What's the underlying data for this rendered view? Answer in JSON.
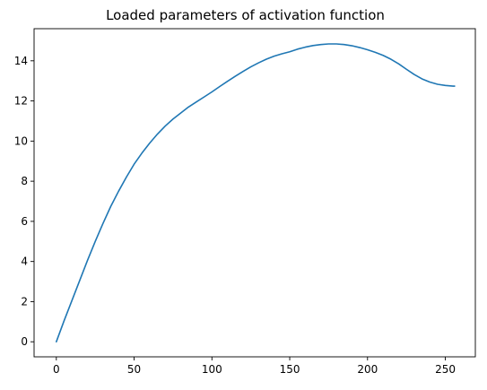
{
  "chart_data": {
    "type": "line",
    "title": "Loaded parameters of activation function",
    "xlabel": "",
    "ylabel": "",
    "xlim": [
      -14.3,
      269.3
    ],
    "ylim": [
      -0.75,
      15.6
    ],
    "xticks": [
      0,
      50,
      100,
      150,
      200,
      250
    ],
    "yticks": [
      0,
      2,
      4,
      6,
      8,
      10,
      12,
      14
    ],
    "grid": false,
    "legend": "none",
    "series": [
      {
        "color": "#1f77b4",
        "x": [
          0,
          5,
          10,
          15,
          20,
          25,
          30,
          35,
          40,
          45,
          50,
          55,
          60,
          65,
          70,
          75,
          80,
          85,
          90,
          95,
          100,
          105,
          110,
          115,
          120,
          125,
          130,
          135,
          140,
          145,
          150,
          155,
          160,
          165,
          170,
          175,
          180,
          185,
          190,
          195,
          200,
          205,
          210,
          215,
          220,
          225,
          230,
          235,
          240,
          245,
          250,
          255,
          256
        ],
        "y": [
          0.0,
          1.05,
          2.05,
          3.05,
          4.05,
          5.0,
          5.9,
          6.75,
          7.5,
          8.2,
          8.85,
          9.4,
          9.9,
          10.35,
          10.75,
          11.1,
          11.4,
          11.7,
          11.95,
          12.2,
          12.45,
          12.72,
          12.98,
          13.23,
          13.47,
          13.7,
          13.9,
          14.08,
          14.23,
          14.35,
          14.45,
          14.58,
          14.68,
          14.76,
          14.81,
          14.84,
          14.84,
          14.81,
          14.75,
          14.66,
          14.55,
          14.42,
          14.27,
          14.08,
          13.85,
          13.58,
          13.32,
          13.1,
          12.94,
          12.83,
          12.77,
          12.74,
          12.74
        ]
      }
    ]
  }
}
